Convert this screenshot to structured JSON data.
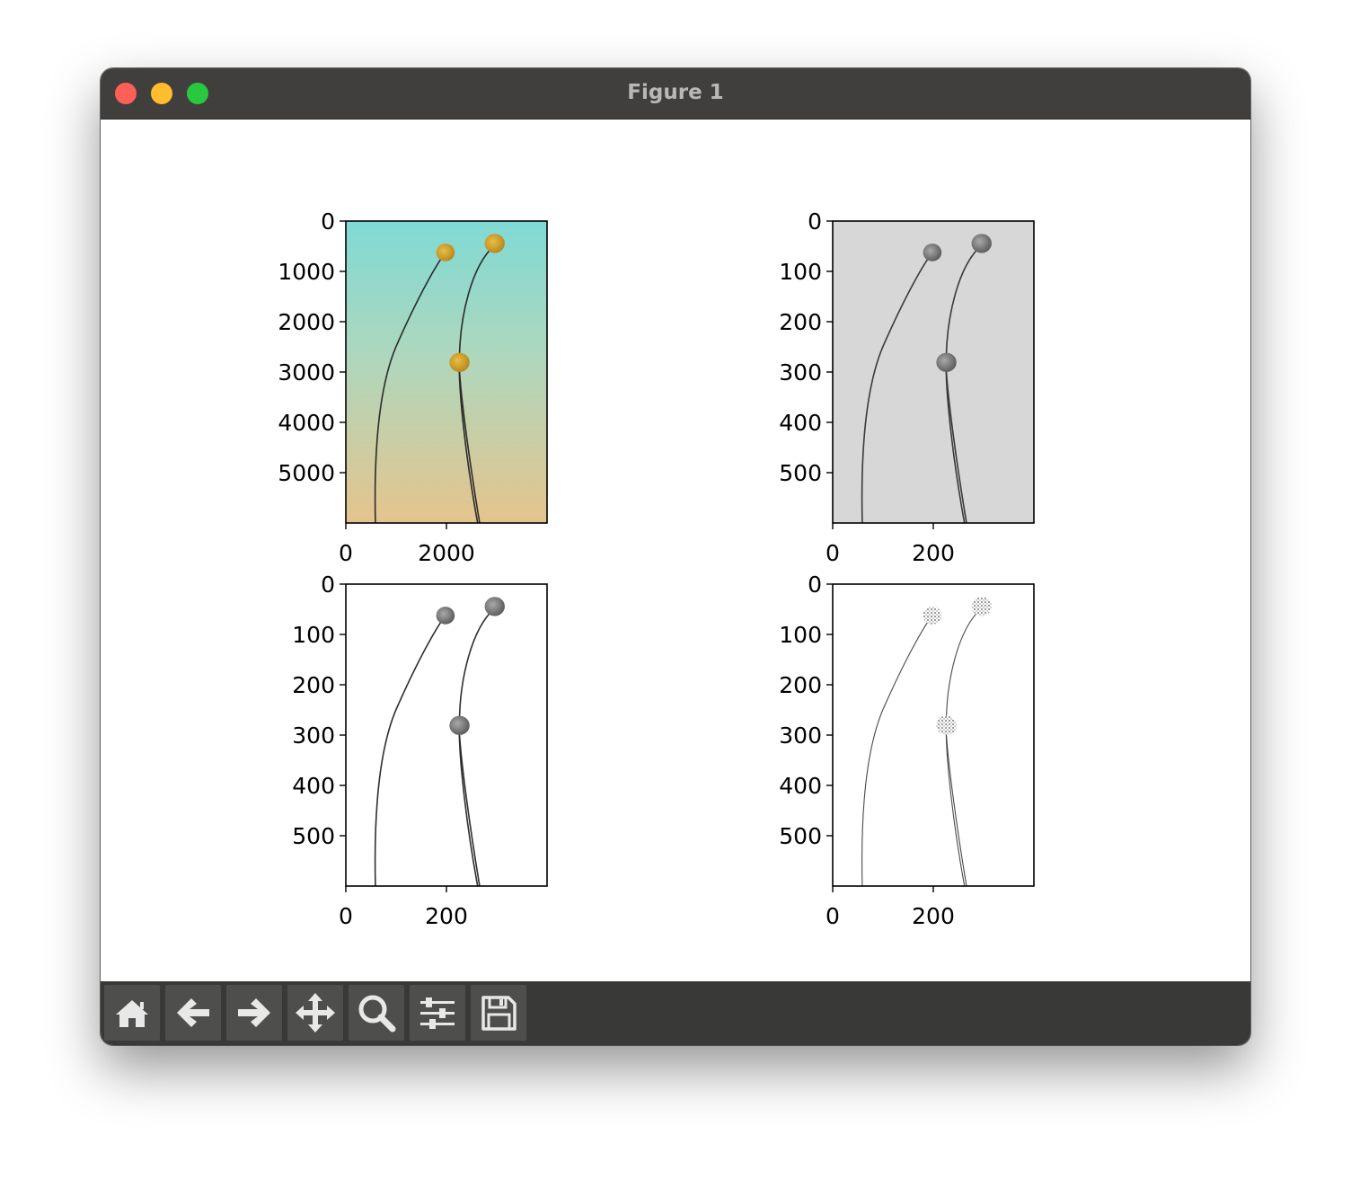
{
  "window": {
    "title": "Figure 1"
  },
  "toolbar": {
    "buttons": [
      {
        "name": "home-button",
        "icon": "home-icon"
      },
      {
        "name": "back-button",
        "icon": "arrow-left-icon"
      },
      {
        "name": "forward-button",
        "icon": "arrow-right-icon"
      },
      {
        "name": "pan-button",
        "icon": "move-icon"
      },
      {
        "name": "zoom-button",
        "icon": "magnifier-icon"
      },
      {
        "name": "configure-subplots-button",
        "icon": "sliders-icon"
      },
      {
        "name": "save-button",
        "icon": "floppy-disk-icon"
      }
    ]
  },
  "colors": {
    "titlebar": "#403f3d",
    "toolbar": "#393937",
    "button": "#4e4e4c"
  },
  "chart_data": [
    {
      "type": "image",
      "image": "color photo of two dried yellow billy-button flowers on a teal-to-tan gradient",
      "x_ticks": [
        "0",
        "2000"
      ],
      "y_ticks": [
        "0",
        "1000",
        "2000",
        "3000",
        "4000",
        "5000"
      ],
      "xlim": [
        0,
        4000
      ],
      "ylim": [
        6000,
        0
      ]
    },
    {
      "type": "image",
      "image": "grayscale version of the flower photo",
      "x_ticks": [
        "0",
        "200"
      ],
      "y_ticks": [
        "0",
        "100",
        "200",
        "300",
        "400",
        "500"
      ],
      "xlim": [
        0,
        400
      ],
      "ylim": [
        600,
        0
      ]
    },
    {
      "type": "image",
      "image": "grayscale flowers with background removed to white",
      "x_ticks": [
        "0",
        "200"
      ],
      "y_ticks": [
        "0",
        "100",
        "200",
        "300",
        "400",
        "500"
      ],
      "xlim": [
        0,
        400
      ],
      "ylim": [
        600,
        0
      ]
    },
    {
      "type": "image",
      "image": "thresholded sparse edges of the flowers on white",
      "x_ticks": [
        "0",
        "200"
      ],
      "y_ticks": [
        "0",
        "100",
        "200",
        "300",
        "400",
        "500"
      ],
      "xlim": [
        0,
        400
      ],
      "ylim": [
        600,
        0
      ]
    }
  ]
}
